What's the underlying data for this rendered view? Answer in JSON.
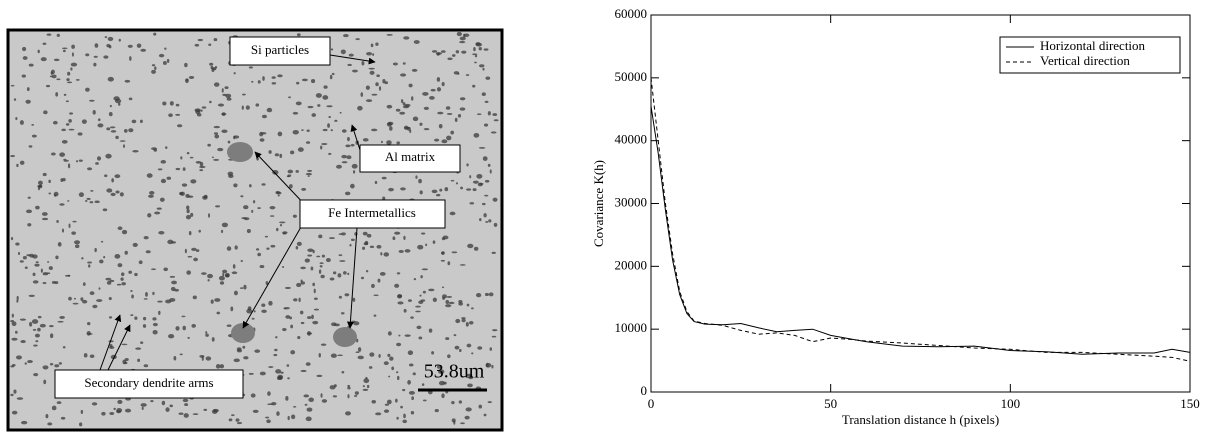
{
  "micrograph": {
    "labels": [
      "Si particles",
      "Al matrix",
      "Fe Intermetallics",
      "Secondary dendrite arms"
    ],
    "scale_bar": "53.8um"
  },
  "chart_data": {
    "type": "line",
    "xlabel": "Translation distance h (pixels)",
    "ylabel": "Covariance K(h)",
    "x": [
      0,
      2,
      4,
      6,
      8,
      10,
      12,
      15,
      20,
      25,
      30,
      35,
      40,
      45,
      50,
      55,
      60,
      70,
      80,
      90,
      100,
      110,
      120,
      130,
      140,
      145,
      150
    ],
    "series": [
      {
        "name": "Horizontal direction",
        "color": "#000000",
        "line_style": "solid",
        "values": [
          45500,
          38000,
          29000,
          21000,
          15500,
          12500,
          11200,
          10800,
          10700,
          10900,
          10200,
          9600,
          9800,
          10000,
          9000,
          8500,
          8000,
          7300,
          7200,
          7300,
          6600,
          6400,
          6000,
          6200,
          6200,
          6800,
          6300
        ]
      },
      {
        "name": "Vertical direction",
        "color": "#000000",
        "line_style": "dashed",
        "values": [
          50000,
          40000,
          30000,
          22000,
          16000,
          12800,
          11300,
          10900,
          10600,
          9800,
          9200,
          9400,
          9000,
          8000,
          8600,
          8400,
          8100,
          7800,
          7400,
          7000,
          6800,
          6300,
          6300,
          6000,
          5700,
          5500,
          4900
        ]
      }
    ],
    "xlim": [
      0,
      150
    ],
    "xticks": [
      0,
      50,
      100,
      150
    ],
    "ylim": [
      0,
      60000
    ],
    "yticks": [
      0,
      10000,
      20000,
      30000,
      40000,
      50000,
      60000
    ],
    "legend": "upper right",
    "grid": false
  }
}
